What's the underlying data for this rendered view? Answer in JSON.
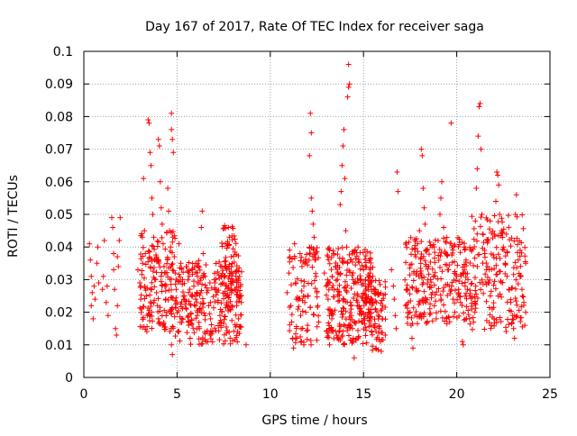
{
  "chart_data": {
    "type": "scatter",
    "title": "Day 167 of 2017, Rate Of TEC Index for receiver saga",
    "xlabel": "GPS time / hours",
    "ylabel": "ROTI / TECUs",
    "xlim": [
      0,
      25
    ],
    "ylim": [
      0,
      0.1
    ],
    "xticks": [
      0,
      5,
      10,
      15,
      20,
      25
    ],
    "yticks": [
      0,
      0.01,
      0.02,
      0.03,
      0.04,
      0.05,
      0.06,
      0.07,
      0.08,
      0.09,
      0.1
    ],
    "xtick_labels": [
      "0",
      "5",
      "10",
      "15",
      "20",
      "25"
    ],
    "ytick_labels": [
      "0",
      "0.01",
      "0.02",
      "0.03",
      "0.04",
      "0.05",
      "0.06",
      "0.07",
      "0.08",
      "0.09",
      "0.1"
    ],
    "grid": true,
    "marker": "+",
    "marker_color": "#ff0000",
    "series": [
      {
        "points": [
          [
            0.3,
            0.041
          ],
          [
            0.35,
            0.036
          ],
          [
            0.4,
            0.031
          ],
          [
            0.45,
            0.026
          ],
          [
            0.4,
            0.022
          ],
          [
            0.5,
            0.018
          ],
          [
            0.55,
            0.028
          ],
          [
            0.6,
            0.024
          ],
          [
            0.7,
            0.035
          ],
          [
            0.75,
            0.04
          ],
          [
            0.8,
            0.029
          ],
          [
            1.0,
            0.027
          ],
          [
            1.05,
            0.031
          ],
          [
            1.1,
            0.042
          ],
          [
            1.2,
            0.023
          ],
          [
            1.3,
            0.019
          ],
          [
            1.25,
            0.028
          ],
          [
            1.5,
            0.049
          ],
          [
            1.55,
            0.046
          ],
          [
            1.6,
            0.038
          ],
          [
            1.6,
            0.033
          ],
          [
            1.65,
            0.027
          ],
          [
            1.7,
            0.015
          ],
          [
            1.75,
            0.013
          ],
          [
            1.8,
            0.022
          ],
          [
            1.85,
            0.034
          ],
          [
            1.9,
            0.042
          ],
          [
            1.95,
            0.049
          ],
          [
            1.8,
            0.037
          ],
          [
            2.9,
            0.033
          ],
          [
            3.0,
            0.029
          ],
          [
            3.05,
            0.024
          ],
          [
            3.1,
            0.021
          ],
          [
            3.15,
            0.035
          ],
          [
            3.2,
            0.061
          ],
          [
            3.25,
            0.045
          ],
          [
            3.3,
            0.038
          ],
          [
            3.35,
            0.025
          ],
          [
            3.4,
            0.019
          ],
          [
            3.45,
            0.079
          ],
          [
            3.5,
            0.078
          ],
          [
            3.55,
            0.069
          ],
          [
            3.6,
            0.065
          ],
          [
            3.65,
            0.055
          ],
          [
            3.7,
            0.05
          ],
          [
            3.75,
            0.043
          ],
          [
            3.8,
            0.036
          ],
          [
            3.85,
            0.03
          ],
          [
            3.9,
            0.026
          ],
          [
            3.95,
            0.022
          ],
          [
            4.0,
            0.018
          ],
          [
            4.0,
            0.073
          ],
          [
            4.05,
            0.071
          ],
          [
            4.1,
            0.06
          ],
          [
            4.15,
            0.052
          ],
          [
            4.2,
            0.047
          ],
          [
            4.25,
            0.041
          ],
          [
            4.3,
            0.034
          ],
          [
            4.35,
            0.028
          ],
          [
            4.4,
            0.024
          ],
          [
            4.45,
            0.02
          ],
          [
            4.5,
            0.058
          ],
          [
            4.55,
            0.051
          ],
          [
            4.6,
            0.045
          ],
          [
            4.65,
            0.04
          ],
          [
            4.7,
            0.081
          ],
          [
            4.7,
            0.076
          ],
          [
            4.75,
            0.073
          ],
          [
            4.8,
            0.069
          ],
          [
            4.85,
            0.037
          ],
          [
            4.9,
            0.032
          ],
          [
            4.95,
            0.027
          ],
          [
            5.0,
            0.023
          ],
          [
            4.7,
            0.01
          ],
          [
            4.75,
            0.007
          ],
          [
            5.05,
            0.014
          ],
          [
            5.1,
            0.041
          ],
          [
            5.2,
            0.035
          ],
          [
            5.3,
            0.03
          ],
          [
            5.4,
            0.025
          ],
          [
            5.5,
            0.021
          ],
          [
            5.6,
            0.017
          ],
          [
            5.7,
            0.012
          ],
          [
            5.8,
            0.033
          ],
          [
            5.9,
            0.028
          ],
          [
            6.0,
            0.024
          ],
          [
            6.1,
            0.02
          ],
          [
            6.2,
            0.015
          ],
          [
            6.3,
            0.046
          ],
          [
            6.35,
            0.051
          ],
          [
            6.4,
            0.038
          ],
          [
            6.5,
            0.031
          ],
          [
            6.6,
            0.026
          ],
          [
            6.7,
            0.022
          ],
          [
            6.8,
            0.018
          ],
          [
            6.9,
            0.014
          ],
          [
            7.0,
            0.03
          ],
          [
            7.1,
            0.027
          ],
          [
            7.2,
            0.023
          ],
          [
            7.3,
            0.019
          ],
          [
            7.4,
            0.034
          ],
          [
            7.5,
            0.029
          ],
          [
            7.6,
            0.025
          ],
          [
            7.7,
            0.041
          ],
          [
            7.75,
            0.046
          ],
          [
            7.8,
            0.043
          ],
          [
            7.9,
            0.037
          ],
          [
            8.0,
            0.032
          ],
          [
            8.1,
            0.027
          ],
          [
            8.2,
            0.022
          ],
          [
            8.3,
            0.018
          ],
          [
            8.4,
            0.028
          ],
          [
            8.45,
            0.023
          ],
          [
            8.7,
            0.01
          ],
          [
            10.9,
            0.026
          ],
          [
            11.0,
            0.032
          ],
          [
            11.05,
            0.037
          ],
          [
            11.1,
            0.022
          ],
          [
            11.15,
            0.017
          ],
          [
            11.2,
            0.012
          ],
          [
            11.25,
            0.009
          ],
          [
            11.3,
            0.041
          ],
          [
            11.35,
            0.029
          ],
          [
            11.4,
            0.024
          ],
          [
            11.6,
            0.038
          ],
          [
            11.7,
            0.034
          ],
          [
            11.8,
            0.028
          ],
          [
            11.85,
            0.023
          ],
          [
            11.9,
            0.02
          ],
          [
            12.0,
            0.016
          ],
          [
            12.1,
            0.068
          ],
          [
            12.15,
            0.081
          ],
          [
            12.2,
            0.075
          ],
          [
            12.2,
            0.055
          ],
          [
            12.25,
            0.051
          ],
          [
            12.3,
            0.047
          ],
          [
            12.35,
            0.043
          ],
          [
            12.4,
            0.036
          ],
          [
            12.45,
            0.031
          ],
          [
            12.5,
            0.026
          ],
          [
            12.55,
            0.022
          ],
          [
            12.6,
            0.017
          ],
          [
            12.9,
            0.032
          ],
          [
            13.0,
            0.028
          ],
          [
            13.1,
            0.024
          ],
          [
            13.2,
            0.021
          ],
          [
            13.3,
            0.018
          ],
          [
            13.4,
            0.038
          ],
          [
            13.5,
            0.034
          ],
          [
            13.6,
            0.03
          ],
          [
            13.7,
            0.026
          ],
          [
            13.75,
            0.053
          ],
          [
            13.8,
            0.057
          ],
          [
            13.85,
            0.065
          ],
          [
            13.9,
            0.071
          ],
          [
            13.95,
            0.076
          ],
          [
            14.0,
            0.061
          ],
          [
            14.05,
            0.045
          ],
          [
            14.1,
            0.04
          ],
          [
            14.15,
            0.035
          ],
          [
            14.2,
            0.096
          ],
          [
            14.25,
            0.09
          ],
          [
            14.2,
            0.089
          ],
          [
            14.15,
            0.086
          ],
          [
            14.3,
            0.023
          ],
          [
            14.35,
            0.019
          ],
          [
            14.4,
            0.015
          ],
          [
            14.45,
            0.012
          ],
          [
            14.5,
            0.006
          ],
          [
            14.6,
            0.029
          ],
          [
            14.7,
            0.025
          ],
          [
            14.8,
            0.021
          ],
          [
            14.9,
            0.017
          ],
          [
            15.0,
            0.033
          ],
          [
            15.1,
            0.028
          ],
          [
            15.2,
            0.024
          ],
          [
            15.3,
            0.02
          ],
          [
            15.4,
            0.016
          ],
          [
            15.5,
            0.031
          ],
          [
            15.6,
            0.027
          ],
          [
            15.7,
            0.023
          ],
          [
            15.8,
            0.019
          ],
          [
            15.85,
            0.015
          ],
          [
            15.9,
            0.011
          ],
          [
            15.95,
            0.008
          ],
          [
            16.0,
            0.021
          ],
          [
            16.5,
            0.033
          ],
          [
            16.6,
            0.028
          ],
          [
            16.65,
            0.024
          ],
          [
            16.7,
            0.019
          ],
          [
            16.75,
            0.015
          ],
          [
            16.8,
            0.063
          ],
          [
            16.85,
            0.057
          ],
          [
            17.3,
            0.027
          ],
          [
            17.4,
            0.023
          ],
          [
            17.5,
            0.02
          ],
          [
            17.55,
            0.016
          ],
          [
            17.6,
            0.012
          ],
          [
            17.65,
            0.009
          ],
          [
            17.7,
            0.032
          ],
          [
            17.8,
            0.037
          ],
          [
            17.9,
            0.041
          ],
          [
            18.0,
            0.045
          ],
          [
            18.1,
            0.07
          ],
          [
            18.15,
            0.068
          ],
          [
            18.2,
            0.058
          ],
          [
            18.25,
            0.052
          ],
          [
            18.3,
            0.047
          ],
          [
            18.4,
            0.039
          ],
          [
            18.5,
            0.034
          ],
          [
            18.6,
            0.03
          ],
          [
            18.7,
            0.026
          ],
          [
            18.8,
            0.022
          ],
          [
            18.9,
            0.018
          ],
          [
            19.0,
            0.042
          ],
          [
            19.1,
            0.05
          ],
          [
            19.15,
            0.055
          ],
          [
            19.2,
            0.06
          ],
          [
            19.3,
            0.046
          ],
          [
            19.4,
            0.038
          ],
          [
            19.5,
            0.033
          ],
          [
            19.6,
            0.028
          ],
          [
            19.7,
            0.078
          ],
          [
            19.8,
            0.024
          ],
          [
            19.9,
            0.02
          ],
          [
            20.0,
            0.031
          ],
          [
            20.1,
            0.027
          ],
          [
            20.2,
            0.023
          ],
          [
            20.3,
            0.011
          ],
          [
            20.35,
            0.01
          ],
          [
            20.4,
            0.04
          ],
          [
            20.5,
            0.036
          ],
          [
            20.6,
            0.03
          ],
          [
            20.7,
            0.025
          ],
          [
            20.8,
            0.021
          ],
          [
            20.9,
            0.017
          ],
          [
            21.0,
            0.048
          ],
          [
            21.05,
            0.058
          ],
          [
            21.1,
            0.064
          ],
          [
            21.15,
            0.074
          ],
          [
            21.2,
            0.083
          ],
          [
            21.25,
            0.084
          ],
          [
            21.3,
            0.07
          ],
          [
            21.35,
            0.05
          ],
          [
            21.4,
            0.044
          ],
          [
            21.5,
            0.038
          ],
          [
            21.6,
            0.033
          ],
          [
            21.7,
            0.029
          ],
          [
            21.8,
            0.025
          ],
          [
            21.9,
            0.021
          ],
          [
            22.0,
            0.018
          ],
          [
            22.1,
            0.054
          ],
          [
            22.15,
            0.063
          ],
          [
            22.2,
            0.062
          ],
          [
            22.25,
            0.059
          ],
          [
            22.3,
            0.05
          ],
          [
            22.4,
            0.045
          ],
          [
            22.5,
            0.04
          ],
          [
            22.6,
            0.035
          ],
          [
            22.7,
            0.031
          ],
          [
            22.8,
            0.027
          ],
          [
            22.9,
            0.023
          ],
          [
            23.0,
            0.019
          ],
          [
            23.05,
            0.015
          ],
          [
            23.1,
            0.012
          ],
          [
            23.15,
            0.05
          ],
          [
            23.2,
            0.056
          ],
          [
            23.3,
            0.036
          ],
          [
            23.4,
            0.031
          ],
          [
            23.5,
            0.027
          ],
          [
            23.6,
            0.023
          ],
          [
            23.65,
            0.016
          ],
          [
            23.7,
            0.02
          ]
        ],
        "band_fill": [
          {
            "x": [
              3.0,
              4.9
            ],
            "y": [
              0.014,
              0.045
            ],
            "n": 160
          },
          {
            "x": [
              4.9,
              8.5
            ],
            "y": [
              0.01,
              0.036
            ],
            "n": 260
          },
          {
            "x": [
              7.4,
              8.3
            ],
            "y": [
              0.02,
              0.047
            ],
            "n": 70
          },
          {
            "x": [
              11.0,
              12.6
            ],
            "y": [
              0.01,
              0.04
            ],
            "n": 90
          },
          {
            "x": [
              13.0,
              15.5
            ],
            "y": [
              0.01,
              0.04
            ],
            "n": 260
          },
          {
            "x": [
              15.0,
              16.2
            ],
            "y": [
              0.008,
              0.03
            ],
            "n": 80
          },
          {
            "x": [
              17.2,
              21.0
            ],
            "y": [
              0.016,
              0.043
            ],
            "n": 260
          },
          {
            "x": [
              20.8,
              23.7
            ],
            "y": [
              0.014,
              0.05
            ],
            "n": 180
          }
        ]
      }
    ]
  }
}
